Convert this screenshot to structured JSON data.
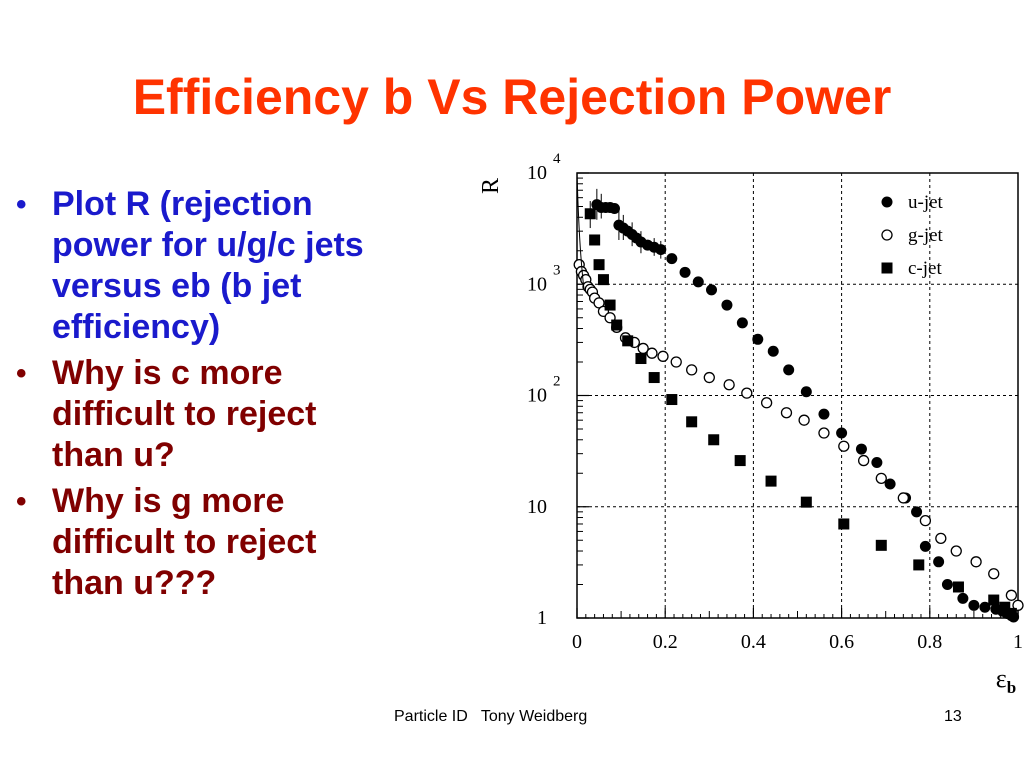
{
  "slide": {
    "title": "Efficiency b Vs Rejection Power",
    "footer_text": "Particle ID   Tony Weidberg",
    "page_number": "13",
    "colors": {
      "title": "#ff3300",
      "bullet_blue": "#1a1acc",
      "bullet_red": "#800000"
    }
  },
  "bullets": [
    {
      "text": "Plot R (rejection power for u/g/c jets versus eb (b jet efficiency)",
      "color": "#1a1acc"
    },
    {
      "text": "Why is c more difficult to reject than u?",
      "color": "#800000"
    },
    {
      "text": "Why is g more difficult to reject than u???",
      "color": "#800000"
    }
  ],
  "chart_data": {
    "type": "scatter",
    "title": "",
    "xlabel": "ε_b",
    "ylabel": "R",
    "xlim": [
      0,
      1
    ],
    "ylim": [
      1,
      10000
    ],
    "yscale": "log",
    "grid": true,
    "legend_position": "top-right",
    "x_tick_labels": [
      "0",
      "0.2",
      "0.4",
      "0.6",
      "0.8",
      "1"
    ],
    "y_tick_labels": [
      {
        "value": 1,
        "base": "1",
        "exp": ""
      },
      {
        "value": 10,
        "base": "10",
        "exp": ""
      },
      {
        "value": 100,
        "base": "10",
        "exp": "2"
      },
      {
        "value": 1000,
        "base": "10",
        "exp": "3"
      },
      {
        "value": 10000,
        "base": "10",
        "exp": "4"
      }
    ],
    "series": [
      {
        "name": "u-jet",
        "marker": "filled-circle",
        "x": [
          0.045,
          0.055,
          0.065,
          0.075,
          0.085,
          0.095,
          0.105,
          0.115,
          0.125,
          0.135,
          0.145,
          0.16,
          0.175,
          0.19,
          0.215,
          0.245,
          0.275,
          0.305,
          0.34,
          0.375,
          0.41,
          0.445,
          0.48,
          0.52,
          0.56,
          0.6,
          0.645,
          0.68,
          0.71,
          0.745,
          0.77,
          0.79,
          0.82,
          0.84,
          0.875,
          0.9,
          0.925,
          0.95,
          0.965,
          0.975,
          0.985,
          0.99
        ],
        "y": [
          5200,
          4900,
          4900,
          4900,
          4800,
          3400,
          3200,
          3000,
          2800,
          2600,
          2400,
          2250,
          2150,
          2050,
          1700,
          1280,
          1050,
          890,
          650,
          450,
          320,
          250,
          170,
          108,
          68,
          46,
          33,
          25,
          16,
          12,
          9,
          4.4,
          3.2,
          2,
          1.5,
          1.3,
          1.25,
          1.2,
          1.15,
          1.1,
          1.05,
          1.02
        ],
        "error_bars": [
          {
            "x": 0.045,
            "low": 3800,
            "high": 7200
          },
          {
            "x": 0.055,
            "low": 3900,
            "high": 6500
          },
          {
            "x": 0.095,
            "low": 2500,
            "high": 4600
          },
          {
            "x": 0.105,
            "low": 2500,
            "high": 4200
          },
          {
            "x": 0.125,
            "low": 2200,
            "high": 3600
          },
          {
            "x": 0.145,
            "low": 1900,
            "high": 3000
          },
          {
            "x": 0.175,
            "low": 1800,
            "high": 2600
          },
          {
            "x": 0.19,
            "low": 1700,
            "high": 2450
          }
        ]
      },
      {
        "name": "g-jet",
        "marker": "open-circle",
        "x": [
          0.005,
          0.01,
          0.015,
          0.02,
          0.025,
          0.03,
          0.035,
          0.04,
          0.05,
          0.06,
          0.075,
          0.09,
          0.11,
          0.13,
          0.15,
          0.17,
          0.195,
          0.225,
          0.26,
          0.3,
          0.345,
          0.385,
          0.43,
          0.475,
          0.515,
          0.56,
          0.605,
          0.65,
          0.69,
          0.74,
          0.79,
          0.825,
          0.86,
          0.905,
          0.945,
          0.985,
          1.0
        ],
        "y": [
          1500,
          1300,
          1200,
          1100,
          950,
          900,
          850,
          750,
          680,
          570,
          500,
          410,
          330,
          300,
          265,
          240,
          225,
          200,
          170,
          145,
          125,
          105,
          86,
          70,
          60,
          46,
          35,
          26,
          18,
          12,
          7.5,
          5.2,
          4,
          3.2,
          2.5,
          1.6,
          1.3
        ],
        "error_bars": []
      },
      {
        "name": "c-jet",
        "marker": "filled-square",
        "x": [
          0.03,
          0.04,
          0.05,
          0.06,
          0.075,
          0.09,
          0.115,
          0.145,
          0.175,
          0.215,
          0.26,
          0.31,
          0.37,
          0.44,
          0.52,
          0.605,
          0.69,
          0.775,
          0.865,
          0.945,
          0.97,
          0.985
        ],
        "y": [
          4300,
          2500,
          1500,
          1100,
          650,
          430,
          310,
          215,
          145,
          92,
          58,
          40,
          26,
          17,
          11,
          7,
          4.5,
          3,
          1.9,
          1.45,
          1.25,
          1.1
        ],
        "error_bars": [
          {
            "x": 0.03,
            "low": 3200,
            "high": 5600
          }
        ]
      }
    ]
  }
}
